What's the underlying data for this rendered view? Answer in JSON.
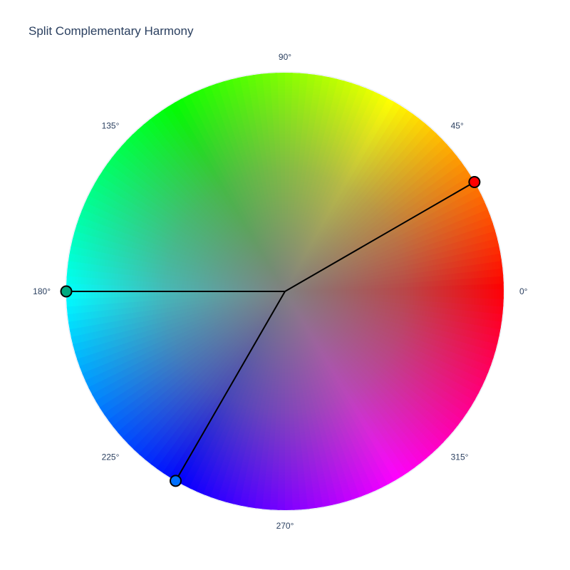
{
  "chart_data": {
    "type": "polar-scatter",
    "title": "Split Complementary Harmony",
    "angular_axis": {
      "unit": "°",
      "tick_values": [
        0,
        45,
        90,
        135,
        180,
        225,
        270,
        315
      ],
      "tick_labels": [
        "0°",
        "45°",
        "90°",
        "135°",
        "180°",
        "225°",
        "270°",
        "315°"
      ],
      "direction": "counterclockwise",
      "rotation": 0
    },
    "radial_axis": {
      "range": [
        0,
        1
      ],
      "visible": false
    },
    "background": "hue color wheel, saturation increasing outward",
    "harmony_points": [
      {
        "theta": 30,
        "r": 1,
        "color": "#ff0000"
      },
      {
        "theta": 180,
        "r": 1,
        "color": "#00aa7f"
      },
      {
        "theta": 240,
        "r": 1,
        "color": "#0070ff"
      }
    ],
    "line_color": "#000000",
    "marker_outline": "#000000",
    "grid": false,
    "legend": "none"
  }
}
